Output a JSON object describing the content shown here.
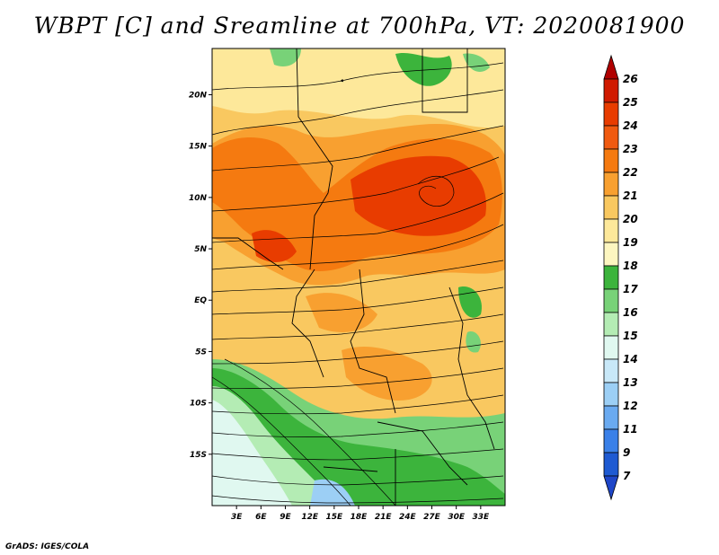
{
  "title": "WBPT [C] and Sreamline at 700hPa, VT: 2020081900",
  "credit": "GrADS: IGES/COLA",
  "map": {
    "lon_range": [
      0,
      36
    ],
    "lat_range": [
      -20,
      24.5
    ],
    "lat_ticks": [
      "20N",
      "15N",
      "10N",
      "5N",
      "EQ",
      "5S",
      "10S",
      "15S"
    ],
    "lat_values": [
      20,
      15,
      10,
      5,
      0,
      -5,
      -10,
      -15
    ],
    "lon_ticks": [
      "3E",
      "6E",
      "9E",
      "12E",
      "15E",
      "18E",
      "21E",
      "24E",
      "27E",
      "30E",
      "33E"
    ],
    "lon_values": [
      3,
      6,
      9,
      12,
      15,
      18,
      21,
      24,
      27,
      30,
      33
    ]
  },
  "colorbar": {
    "labels": [
      "26",
      "25",
      "24",
      "23",
      "22",
      "21",
      "20",
      "19",
      "18",
      "17",
      "16",
      "15",
      "14",
      "13",
      "12",
      "11",
      "9",
      "7"
    ],
    "colors": [
      "#b00000",
      "#d01a00",
      "#e83c00",
      "#f05a10",
      "#f57a10",
      "#f8a030",
      "#f9c860",
      "#fde89a",
      "#fdf6c0",
      "#3cb43c",
      "#78d278",
      "#b4ecb4",
      "#e0f8f0",
      "#c8e8f8",
      "#9ccff5",
      "#6aaaf0",
      "#3a80e8",
      "#1e5ad2",
      "#1e46c8"
    ]
  }
}
